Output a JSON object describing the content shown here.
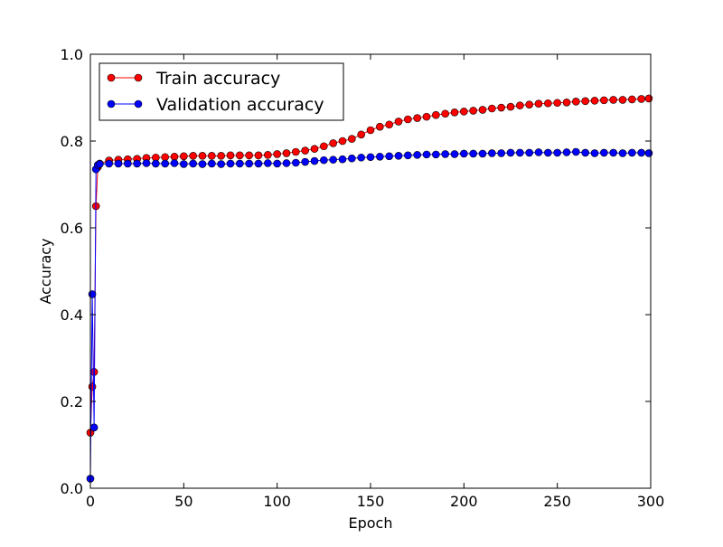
{
  "chart_data": {
    "type": "line",
    "xlabel": "Epoch",
    "ylabel": "Accuracy",
    "xlim": [
      0,
      300
    ],
    "ylim": [
      0.0,
      1.0
    ],
    "xticks": [
      0,
      50,
      100,
      150,
      200,
      250,
      300
    ],
    "xtick_labels": [
      "0",
      "50",
      "100",
      "150",
      "200",
      "250",
      "300"
    ],
    "yticks": [
      0.0,
      0.2,
      0.4,
      0.6,
      0.8,
      1.0
    ],
    "ytick_labels": [
      "0.0",
      "0.2",
      "0.4",
      "0.6",
      "0.8",
      "1.0"
    ],
    "grid": false,
    "legend_position": "upper-left",
    "x": [
      0,
      1,
      2,
      3,
      4,
      5,
      10,
      15,
      20,
      25,
      30,
      35,
      40,
      45,
      50,
      55,
      60,
      65,
      70,
      75,
      80,
      85,
      90,
      95,
      100,
      105,
      110,
      115,
      120,
      125,
      130,
      135,
      140,
      145,
      150,
      155,
      160,
      165,
      170,
      175,
      180,
      185,
      190,
      195,
      200,
      205,
      210,
      215,
      220,
      225,
      230,
      235,
      240,
      245,
      250,
      255,
      260,
      265,
      270,
      275,
      280,
      285,
      290,
      295,
      299
    ],
    "series": [
      {
        "name": "Train accuracy",
        "color": "#ff0000",
        "values": [
          0.128,
          0.234,
          0.268,
          0.65,
          0.74,
          0.748,
          0.755,
          0.757,
          0.758,
          0.759,
          0.761,
          0.762,
          0.763,
          0.764,
          0.765,
          0.766,
          0.766,
          0.766,
          0.766,
          0.767,
          0.767,
          0.767,
          0.767,
          0.768,
          0.77,
          0.772,
          0.775,
          0.778,
          0.782,
          0.788,
          0.795,
          0.8,
          0.805,
          0.815,
          0.825,
          0.833,
          0.838,
          0.845,
          0.85,
          0.853,
          0.856,
          0.86,
          0.863,
          0.866,
          0.868,
          0.87,
          0.872,
          0.875,
          0.877,
          0.879,
          0.882,
          0.884,
          0.886,
          0.887,
          0.888,
          0.889,
          0.891,
          0.892,
          0.893,
          0.894,
          0.895,
          0.895,
          0.896,
          0.897,
          0.898
        ]
      },
      {
        "name": "Validation accuracy",
        "color": "#0000ff",
        "values": [
          0.022,
          0.447,
          0.14,
          0.735,
          0.745,
          0.747,
          0.748,
          0.748,
          0.748,
          0.748,
          0.749,
          0.748,
          0.748,
          0.749,
          0.747,
          0.748,
          0.747,
          0.748,
          0.747,
          0.748,
          0.748,
          0.748,
          0.748,
          0.749,
          0.748,
          0.749,
          0.75,
          0.752,
          0.754,
          0.756,
          0.757,
          0.758,
          0.76,
          0.762,
          0.763,
          0.764,
          0.765,
          0.766,
          0.767,
          0.768,
          0.769,
          0.769,
          0.77,
          0.77,
          0.771,
          0.771,
          0.771,
          0.772,
          0.772,
          0.773,
          0.773,
          0.773,
          0.774,
          0.773,
          0.773,
          0.774,
          0.775,
          0.773,
          0.772,
          0.773,
          0.773,
          0.772,
          0.773,
          0.773,
          0.772
        ]
      }
    ]
  }
}
